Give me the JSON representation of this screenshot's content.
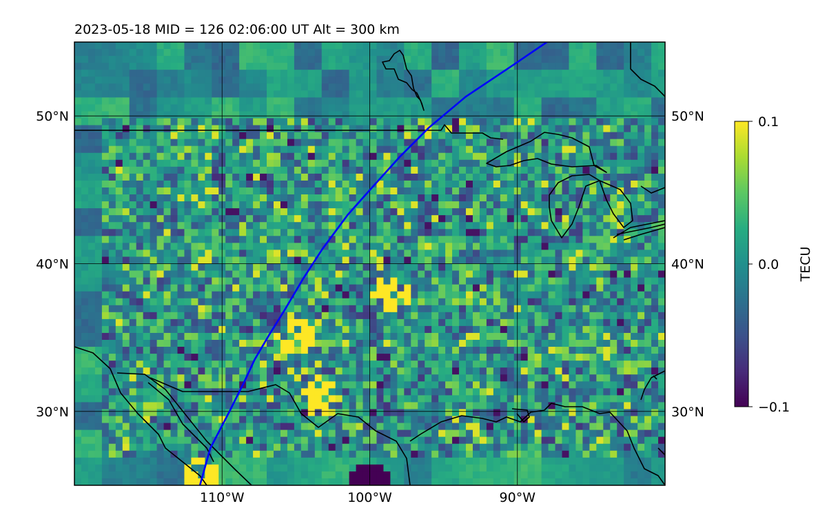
{
  "figure": {
    "title": "2023-05-18  MID = 126    02:06:00  UT  Alt = 300 km",
    "date": "2023-05-18",
    "mid": 126,
    "time_ut": "02:06:00",
    "altitude_km": 300
  },
  "map": {
    "lon_range": [
      -120,
      -80
    ],
    "lat_range": [
      25,
      55
    ],
    "lat_ticks": [
      {
        "value": 30,
        "label": "30°N"
      },
      {
        "value": 40,
        "label": "40°N"
      },
      {
        "value": 50,
        "label": "50°N"
      }
    ],
    "lon_ticks": [
      {
        "value": -110,
        "label": "110°W"
      },
      {
        "value": -100,
        "label": "100°W"
      },
      {
        "value": -90,
        "label": "90°W"
      }
    ],
    "gridlines": true,
    "coastline_color": "#000000",
    "track_color": "#0000ff",
    "satellite_track": [
      [
        -111.5,
        25
      ],
      [
        -110.8,
        27.5
      ],
      [
        -109.5,
        30
      ],
      [
        -108.5,
        32
      ],
      [
        -107.8,
        33.5
      ],
      [
        -106.8,
        35.2
      ],
      [
        -105.8,
        36.8
      ],
      [
        -104.5,
        39
      ],
      [
        -103.2,
        41
      ],
      [
        -101.5,
        43.3
      ],
      [
        -99.8,
        45.2
      ],
      [
        -98.0,
        47.2
      ],
      [
        -96.0,
        49.2
      ],
      [
        -93.5,
        51.3
      ],
      [
        -90.5,
        53.3
      ],
      [
        -88,
        55
      ]
    ]
  },
  "colorbar": {
    "label": "TECU",
    "colormap": "viridis",
    "min": -0.1,
    "max": 0.1,
    "ticks": [
      {
        "value": 0.1,
        "label": "0.1"
      },
      {
        "value": 0.0,
        "label": "0.0"
      },
      {
        "value": -0.1,
        "label": "−0.1"
      }
    ]
  },
  "chart_data": {
    "type": "heatmap",
    "title": "2023-05-18  MID = 126    02:06:00  UT  Alt = 300 km",
    "x_range": [
      -120,
      -80
    ],
    "y_range": [
      25,
      55
    ],
    "value_range": [
      -0.1,
      0.1
    ],
    "colorbar_label": "TECU",
    "notable_features": [
      {
        "label": "positive TEC cluster",
        "lon": -105,
        "lat": 35,
        "value": 0.1
      },
      {
        "label": "positive TEC patch",
        "lon": -98.5,
        "lat": 38,
        "value": 0.1
      },
      {
        "label": "positive TEC patch",
        "lon": -103.5,
        "lat": 31,
        "value": 0.1
      },
      {
        "label": "positive TEC patch",
        "lon": -111.5,
        "lat": 25.5,
        "value": 0.1
      },
      {
        "label": "negative TEC patch",
        "lon": -100,
        "lat": 25.3,
        "value": -0.1
      }
    ]
  }
}
